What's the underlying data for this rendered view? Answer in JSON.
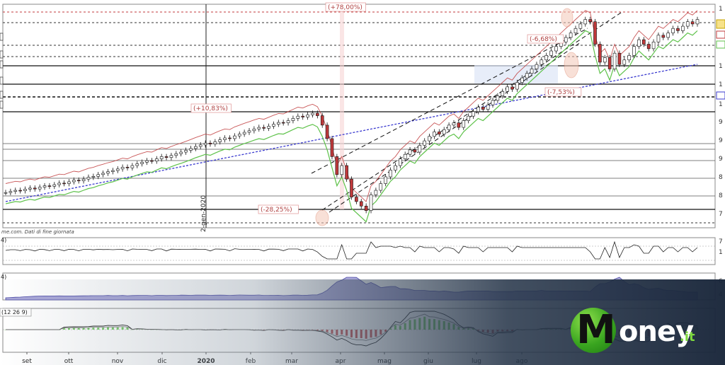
{
  "chart_data": {
    "type": "candlestick",
    "source_note": "me.com. Dati di fine giornata",
    "x_ticks": [
      "set",
      "ott",
      "nov",
      "dic",
      "2020",
      "feb",
      "mar",
      "apr",
      "mag",
      "giu",
      "lug",
      "ago"
    ],
    "x_bold_tick": "2020",
    "vertical_marker_label": "2-gen-2020",
    "annotations": [
      "(+78,00%)",
      "(+10,83%)",
      "(-28,25%)",
      "(-6,68%)",
      "(-7,53%)"
    ],
    "panel_labels": [
      "4)",
      "4)",
      "(12 26 9)"
    ],
    "right_axis_fragments": [
      "1",
      "1",
      "1",
      "1",
      "1",
      "1",
      "1",
      "9",
      "9",
      "9",
      "8",
      "8",
      "7",
      "7",
      "1",
      "6",
      "4",
      "2"
    ],
    "left_axis_fragments": [
      "",
      "",
      "",
      "",
      "",
      ""
    ],
    "price_series_note": "daily candles, Aug 2019 to Aug 2020",
    "price_values": [
      100,
      100.5,
      101,
      100.8,
      101.5,
      102,
      101.6,
      102.4,
      103,
      102.8,
      103.5,
      104.2,
      104,
      104.8,
      105.5,
      105.2,
      106,
      106.8,
      107.2,
      108,
      108.6,
      109.3,
      109.8,
      110.5,
      111.3,
      111,
      112,
      112.8,
      113.5,
      114.2,
      114,
      115,
      116,
      115.6,
      116.5,
      117.3,
      118,
      118.8,
      119.6,
      120.5,
      121.2,
      122,
      121.6,
      122.6,
      123.5,
      124.3,
      124,
      125.2,
      126,
      126.8,
      127.5,
      128.3,
      129,
      128.6,
      129.5,
      130.4,
      131.2,
      131,
      132,
      133,
      134,
      133.6,
      134.6,
      135.3,
      134.2,
      130,
      124,
      116,
      108,
      112,
      106,
      98,
      96,
      94,
      92,
      99,
      101,
      104,
      107,
      110,
      112,
      115,
      117,
      119,
      118,
      121,
      123,
      125,
      127,
      126,
      128,
      130,
      131,
      129,
      132,
      134,
      136,
      138,
      137,
      139,
      141,
      143,
      145,
      147,
      146,
      149,
      151,
      153,
      155,
      157,
      159,
      161,
      163,
      165,
      167,
      169,
      171,
      173,
      175,
      177,
      176,
      166,
      158,
      160,
      155,
      162,
      157,
      159,
      161,
      165,
      168,
      166,
      164,
      167,
      170,
      169,
      171,
      173,
      172,
      174,
      176,
      175,
      177
    ],
    "y_range": [
      90,
      180
    ],
    "series": [
      {
        "name": "",
        "color": "#111111"
      },
      {
        "name": "",
        "color": "#5ec24a"
      },
      {
        "name": "",
        "color": "#c0393b"
      },
      {
        "name": "",
        "color": "#3a3acf"
      }
    ]
  },
  "brand": {
    "m": "M",
    "rest": "oney",
    "tld": ".it"
  }
}
